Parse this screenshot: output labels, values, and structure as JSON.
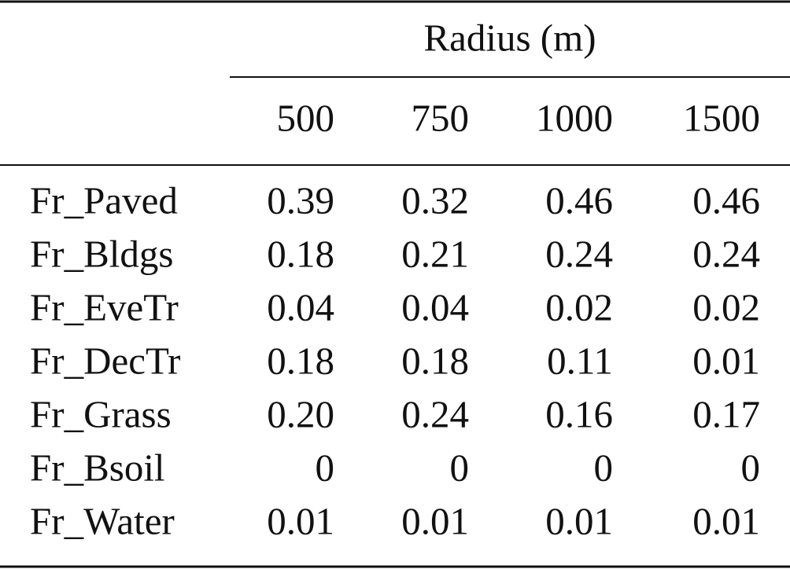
{
  "table": {
    "spanner": "Radius (m)",
    "columns": [
      "500",
      "750",
      "1000",
      "1500"
    ],
    "rows": [
      {
        "label": "Fr_Paved",
        "values": [
          "0.39",
          "0.32",
          "0.46",
          "0.46"
        ]
      },
      {
        "label": "Fr_Bldgs",
        "values": [
          "0.18",
          "0.21",
          "0.24",
          "0.24"
        ]
      },
      {
        "label": "Fr_EveTr",
        "values": [
          "0.04",
          "0.04",
          "0.02",
          "0.02"
        ]
      },
      {
        "label": "Fr_DecTr",
        "values": [
          "0.18",
          "0.18",
          "0.11",
          "0.01"
        ]
      },
      {
        "label": "Fr_Grass",
        "values": [
          "0.20",
          "0.24",
          "0.16",
          "0.17"
        ]
      },
      {
        "label": "Fr_Bsoil",
        "values": [
          "0",
          "0",
          "0",
          "0"
        ]
      },
      {
        "label": "Fr_Water",
        "values": [
          "0.01",
          "0.01",
          "0.01",
          "0.01"
        ]
      }
    ]
  }
}
